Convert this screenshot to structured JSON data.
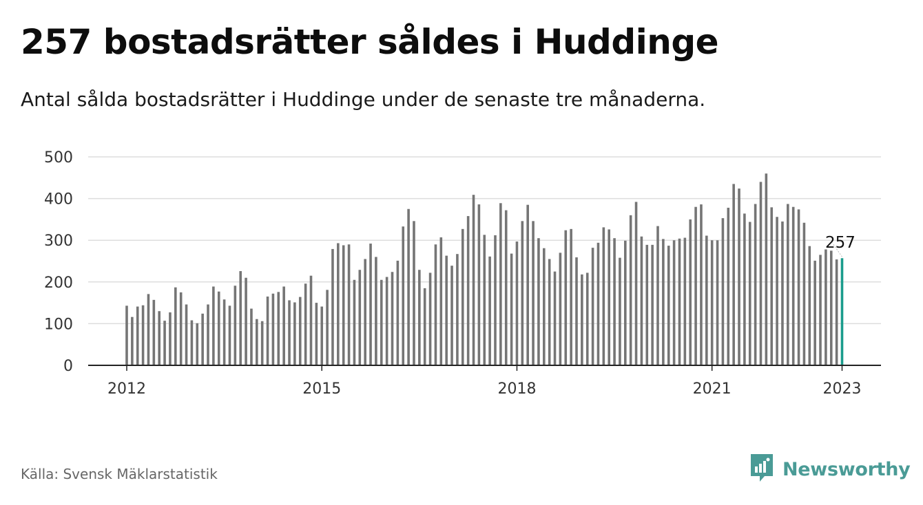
{
  "header": {
    "title": "257 bostadsrätter såldes i Huddinge",
    "subtitle": "Antal sålda bostadsrätter i Huddinge under de senaste tre månaderna."
  },
  "footer": {
    "source": "Källa: Svensk Mäklarstatistik",
    "brand": "Newsworthy",
    "brand_icon": "newsworthy-logo-icon",
    "brand_color": "#4a9b96"
  },
  "chart_data": {
    "type": "bar",
    "title": "",
    "xlabel": "",
    "ylabel": "",
    "ylim": [
      0,
      500
    ],
    "yticks": [
      0,
      100,
      200,
      300,
      400,
      500
    ],
    "xtick_labels": [
      "2012",
      "2015",
      "2018",
      "2021",
      "2023"
    ],
    "grid": true,
    "bar_color": "#757575",
    "highlight_color": "#1a9c8c",
    "highlight_label": "257",
    "series": [
      {
        "values": [
          143,
          116,
          141,
          144,
          171,
          157,
          130,
          107,
          127,
          187,
          175,
          146,
          108,
          101,
          124,
          146,
          189,
          177,
          158,
          143,
          191,
          226,
          210,
          136,
          111,
          106,
          165,
          172,
          176,
          189,
          156,
          151,
          164,
          196,
          215,
          150,
          141,
          181,
          279,
          293,
          288,
          290,
          205,
          229,
          255,
          292,
          260,
          205,
          212,
          224,
          251,
          333,
          375,
          346,
          229,
          185,
          222,
          290,
          307,
          263,
          239,
          267,
          327,
          358,
          409,
          386,
          313,
          261,
          312,
          389,
          372,
          268,
          297,
          346,
          385,
          346,
          305,
          281,
          255,
          225,
          270,
          324,
          327,
          259,
          218,
          222,
          282,
          294,
          331,
          326,
          305,
          258,
          299,
          360,
          392,
          309,
          289,
          289,
          334,
          303,
          287,
          300,
          304,
          306,
          350,
          380,
          386,
          311,
          300,
          300,
          353,
          378,
          435,
          424,
          364,
          344,
          387,
          440,
          460,
          379,
          356,
          345,
          387,
          380,
          374,
          342,
          286,
          251,
          265,
          278,
          275,
          254,
          257
        ]
      }
    ]
  }
}
